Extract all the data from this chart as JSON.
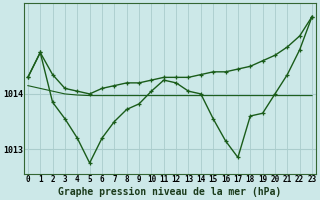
{
  "title": "Graphe pression niveau de la mer (hPa)",
  "background_color": "#cce8e8",
  "line_color": "#1a5c1a",
  "x_labels": [
    "0",
    "1",
    "2",
    "3",
    "4",
    "5",
    "6",
    "7",
    "8",
    "9",
    "10",
    "11",
    "12",
    "13",
    "14",
    "15",
    "16",
    "17",
    "18",
    "19",
    "20",
    "21",
    "22",
    "23"
  ],
  "ylim": [
    1012.55,
    1015.65
  ],
  "yticks": [
    1013,
    1014
  ],
  "series": [
    {
      "y": [
        1014.3,
        1014.75,
        1014.35,
        1014.1,
        1014.05,
        1014.0,
        1014.1,
        1014.15,
        1014.2,
        1014.2,
        1014.25,
        1014.3,
        1014.3,
        1014.3,
        1014.35,
        1014.4,
        1014.4,
        1014.45,
        1014.5,
        1014.6,
        1014.7,
        1014.85,
        1015.05,
        1015.4
      ],
      "style": "-",
      "lw": 1.0,
      "marker": "+"
    },
    {
      "y": [
        1014.15,
        1014.1,
        1014.05,
        1014.0,
        1013.98,
        1013.97,
        1013.97,
        1013.97,
        1013.97,
        1013.97,
        1013.97,
        1013.97,
        1013.97,
        1013.97,
        1013.97,
        1013.97,
        1013.97,
        1013.97,
        1013.97,
        1013.97,
        1013.97,
        1013.97,
        1013.97,
        1013.97
      ],
      "style": "-",
      "lw": 0.8,
      "marker": null
    },
    {
      "y": [
        1014.3,
        1014.75,
        1013.85,
        1013.55,
        1013.2,
        1012.75,
        1013.2,
        1013.5,
        1013.72,
        1013.82,
        1014.05,
        1014.25,
        1014.2,
        1014.05,
        1014.0,
        1013.55,
        1013.15,
        1012.85,
        1013.6,
        1013.65,
        1014.0,
        1014.35,
        1014.8,
        1015.4
      ],
      "style": "-",
      "lw": 1.0,
      "marker": "+"
    }
  ],
  "grid_color": "#aacccc",
  "spine_color": "#336633",
  "title_fontsize": 7,
  "tick_fontsize": 5.5
}
